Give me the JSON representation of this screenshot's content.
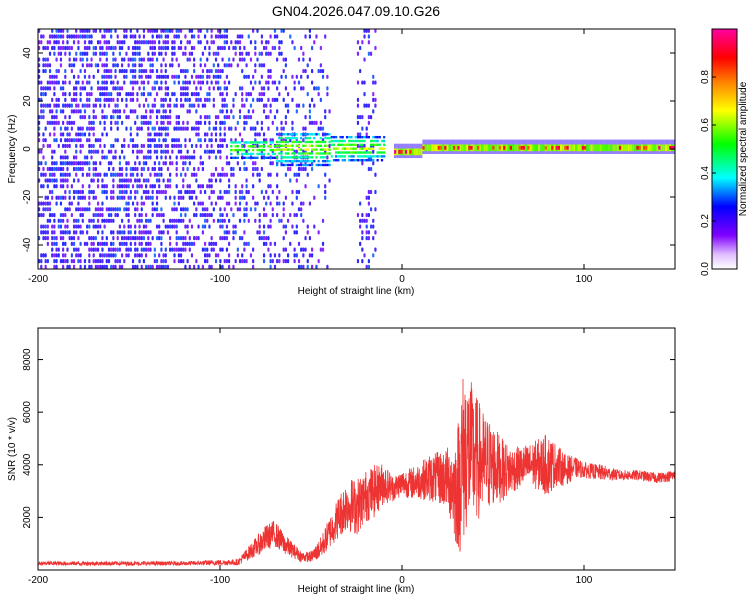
{
  "chart_data": [
    {
      "type": "heatmap",
      "title": "GN04.2026.047.09.10.G26",
      "xlabel": "Height of straight line (km)",
      "ylabel": "Frequency (Hz)",
      "xlim": [
        -200,
        150
      ],
      "ylim": [
        -50,
        50
      ],
      "x_ticks": [
        -200,
        -100,
        0,
        100
      ],
      "y_ticks": [
        -40,
        -20,
        0,
        20,
        40
      ],
      "colorbar": {
        "label": "Normalized spectral amplitude",
        "range": [
          0,
          1
        ],
        "ticks": [
          "0.0",
          "0.2",
          "0.4",
          "0.6",
          "0.8"
        ],
        "colors": [
          "#ffffff",
          "#8000ff",
          "#0000ff",
          "#00ffff",
          "#00ff00",
          "#ffff00",
          "#ff8000",
          "#ff0000",
          "#ff00ff"
        ]
      },
      "regions": [
        {
          "x": [
            -200,
            -50
          ],
          "freq_band": [
            -50,
            50
          ],
          "amplitude": 0.15,
          "description_level": "diffuse noise"
        },
        {
          "x": [
            -25,
            -15
          ],
          "freq_band": [
            -50,
            50
          ],
          "amplitude": 0.1
        },
        {
          "x": [
            -95,
            -10
          ],
          "freq_band": [
            -10,
            6
          ],
          "amplitude": 0.45
        },
        {
          "x": [
            -5,
            150
          ],
          "freq_band": [
            -2,
            2
          ],
          "amplitude": 0.85
        }
      ],
      "grid": false
    },
    {
      "type": "line",
      "xlabel": "Height of straight line (km)",
      "ylabel": "SNR (10 * v/v)",
      "xlim": [
        -200,
        150
      ],
      "ylim": [
        0,
        9200
      ],
      "x_ticks": [
        -200,
        -100,
        0,
        100
      ],
      "y_ticks": [
        2000,
        4000,
        6000,
        8000
      ],
      "color": "#ee3333",
      "envelope_x": [
        -200,
        -120,
        -90,
        -75,
        -70,
        -65,
        -55,
        -50,
        -45,
        -40,
        -35,
        -30,
        -25,
        -20,
        -15,
        -10,
        -5,
        0,
        5,
        10,
        15,
        20,
        25,
        30,
        33,
        35,
        40,
        45,
        50,
        55,
        60,
        65,
        70,
        75,
        80,
        85,
        90,
        95,
        100,
        110,
        120,
        130,
        140,
        150
      ],
      "envelope_mean": [
        250,
        250,
        300,
        1200,
        1400,
        1000,
        500,
        500,
        800,
        1400,
        2000,
        2500,
        2400,
        2800,
        3000,
        3300,
        3100,
        3300,
        3300,
        3400,
        3500,
        3500,
        3500,
        3000,
        4000,
        4600,
        4300,
        4000,
        4000,
        3800,
        3800,
        3900,
        4000,
        4000,
        4000,
        4000,
        3800,
        3900,
        3800,
        3700,
        3600,
        3600,
        3500,
        3600
      ],
      "envelope_amp": [
        80,
        80,
        120,
        500,
        500,
        400,
        200,
        200,
        400,
        600,
        800,
        1000,
        1100,
        1000,
        1000,
        800,
        500,
        500,
        600,
        700,
        900,
        1000,
        1200,
        2200,
        3500,
        3200,
        2500,
        2000,
        1600,
        1200,
        900,
        800,
        800,
        1000,
        1200,
        800,
        600,
        400,
        300,
        300,
        200,
        200,
        200,
        200
      ],
      "grid": false
    }
  ]
}
